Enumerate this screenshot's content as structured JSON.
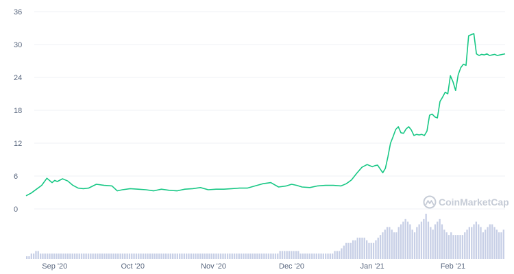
{
  "chart_data": {
    "type": "line",
    "ylim": [
      0,
      36
    ],
    "y_ticks": [
      "0",
      "6",
      "12",
      "18",
      "24",
      "30",
      "36"
    ],
    "x_labels": [
      "Sep '20",
      "Oct '20",
      "Nov '20",
      "Dec '20",
      "Jan '21",
      "Feb '21"
    ],
    "x_dates": [
      "2020-09-01",
      "2020-10-01",
      "2020-11-01",
      "2020-12-01",
      "2021-01-01",
      "2021-02-01"
    ],
    "x_range": [
      "2020-08-21",
      "2021-02-21"
    ],
    "grid": true,
    "series": [
      {
        "color": "#16c784",
        "x": [
          "2020-08-21",
          "2020-08-23",
          "2020-08-25",
          "2020-08-27",
          "2020-08-29",
          "2020-08-31",
          "2020-09-01",
          "2020-09-02",
          "2020-09-04",
          "2020-09-06",
          "2020-09-08",
          "2020-09-10",
          "2020-09-12",
          "2020-09-14",
          "2020-09-17",
          "2020-09-20",
          "2020-09-23",
          "2020-09-25",
          "2020-09-27",
          "2020-09-30",
          "2020-10-03",
          "2020-10-06",
          "2020-10-09",
          "2020-10-12",
          "2020-10-15",
          "2020-10-18",
          "2020-10-21",
          "2020-10-24",
          "2020-10-27",
          "2020-10-30",
          "2020-11-02",
          "2020-11-05",
          "2020-11-08",
          "2020-11-11",
          "2020-11-14",
          "2020-11-17",
          "2020-11-20",
          "2020-11-23",
          "2020-11-26",
          "2020-11-29",
          "2020-12-01",
          "2020-12-03",
          "2020-12-05",
          "2020-12-08",
          "2020-12-11",
          "2020-12-14",
          "2020-12-17",
          "2020-12-20",
          "2020-12-22",
          "2020-12-24",
          "2020-12-26",
          "2020-12-28",
          "2020-12-30",
          "2021-01-01",
          "2021-01-02",
          "2021-01-03",
          "2021-01-04",
          "2021-01-05",
          "2021-01-06",
          "2021-01-07",
          "2021-01-08",
          "2021-01-09",
          "2021-01-10",
          "2021-01-11",
          "2021-01-12",
          "2021-01-13",
          "2021-01-14",
          "2021-01-15",
          "2021-01-16",
          "2021-01-17",
          "2021-01-18",
          "2021-01-19",
          "2021-01-20",
          "2021-01-21",
          "2021-01-22",
          "2021-01-23",
          "2021-01-24",
          "2021-01-25",
          "2021-01-26",
          "2021-01-27",
          "2021-01-28",
          "2021-01-29",
          "2021-01-30",
          "2021-01-31",
          "2021-02-01",
          "2021-02-02",
          "2021-02-03",
          "2021-02-04",
          "2021-02-05",
          "2021-02-06",
          "2021-02-07",
          "2021-02-08",
          "2021-02-09",
          "2021-02-10",
          "2021-02-11",
          "2021-02-12",
          "2021-02-13",
          "2021-02-14",
          "2021-02-15",
          "2021-02-16",
          "2021-02-17",
          "2021-02-18",
          "2021-02-19",
          "2021-02-20",
          "2021-02-21"
        ],
        "y": [
          2.4,
          2.9,
          3.6,
          4.3,
          5.6,
          4.8,
          5.2,
          5.0,
          5.5,
          5.1,
          4.3,
          3.8,
          3.7,
          3.8,
          4.5,
          4.3,
          4.2,
          3.3,
          3.5,
          3.7,
          3.6,
          3.5,
          3.3,
          3.6,
          3.4,
          3.3,
          3.6,
          3.7,
          3.9,
          3.5,
          3.6,
          3.6,
          3.7,
          3.8,
          3.8,
          4.2,
          4.6,
          4.8,
          4.0,
          4.2,
          4.5,
          4.3,
          4.0,
          3.9,
          4.2,
          4.3,
          4.3,
          4.2,
          4.6,
          5.3,
          6.5,
          7.6,
          8.1,
          7.7,
          7.9,
          8.0,
          7.3,
          6.6,
          7.4,
          9.5,
          12.0,
          13.2,
          14.5,
          15.0,
          13.9,
          13.8,
          14.6,
          15.0,
          14.4,
          13.4,
          13.6,
          13.5,
          13.6,
          13.4,
          14.2,
          17.1,
          17.3,
          16.8,
          16.6,
          19.6,
          20.4,
          21.3,
          21.0,
          24.3,
          23.2,
          21.6,
          24.5,
          25.8,
          26.4,
          26.2,
          31.6,
          31.8,
          32.0,
          28.3,
          28.0,
          28.2,
          28.1,
          28.3,
          28.0,
          28.1,
          28.2,
          28.0,
          28.1,
          28.2,
          28.3
        ]
      }
    ],
    "volume": {
      "values": [
        1,
        1,
        2,
        2,
        3,
        3,
        2,
        2,
        2,
        2,
        2,
        2,
        2,
        2,
        2,
        2,
        2,
        2,
        2,
        2,
        2,
        2,
        2,
        2,
        2,
        2,
        2,
        2,
        2,
        2,
        2,
        2,
        2,
        2,
        2,
        2,
        2,
        2,
        2,
        2,
        2,
        2,
        2,
        2,
        2,
        2,
        2,
        2,
        2,
        2,
        2,
        2,
        2,
        2,
        2,
        2,
        2,
        2,
        2,
        2,
        2,
        2,
        2,
        2,
        2,
        2,
        2,
        2,
        2,
        2,
        2,
        2,
        2,
        2,
        2,
        2,
        2,
        2,
        2,
        2,
        2,
        2,
        2,
        2,
        2,
        2,
        2,
        2,
        2,
        2,
        2,
        2,
        2,
        2,
        2,
        2,
        2,
        2,
        2,
        2,
        2,
        2,
        2,
        2,
        2,
        2,
        2,
        2,
        2,
        2,
        2,
        3,
        3,
        3,
        3,
        3,
        3,
        3,
        3,
        3,
        2,
        2,
        2,
        2,
        2,
        2,
        2,
        2,
        2,
        2,
        2,
        2,
        2,
        2,
        2,
        3,
        3,
        3,
        4,
        5,
        6,
        6,
        6,
        7,
        7,
        8,
        8,
        8,
        8,
        7,
        6,
        6,
        6,
        7,
        8,
        9,
        10,
        11,
        12,
        12,
        11,
        10,
        10,
        12,
        13,
        14,
        15,
        14,
        13,
        11,
        10,
        12,
        13,
        14,
        15,
        17,
        14,
        12,
        11,
        13,
        14,
        15,
        13,
        11,
        10,
        9,
        10,
        9,
        9,
        9,
        9,
        9,
        10,
        11,
        12,
        12,
        13,
        14,
        13,
        12,
        10,
        11,
        12,
        13,
        13,
        12,
        11,
        10,
        10,
        11
      ]
    },
    "watermark": "CoinMarketCap"
  }
}
